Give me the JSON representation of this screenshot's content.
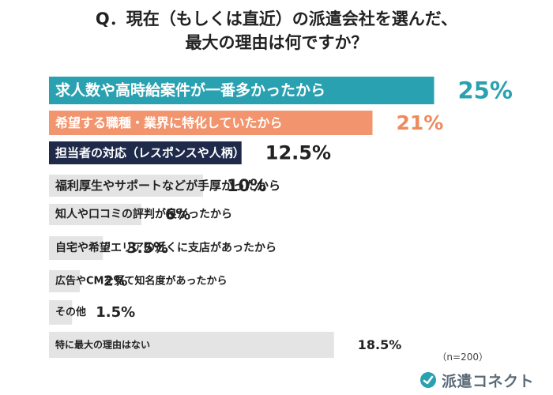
{
  "title_line1": "Q．現在（もしくは直近）の派遣会社を選んだ、",
  "title_line2": "最大の理由は何ですか？",
  "footnote": "（n=200）",
  "logo_text": "派遣コネクト",
  "chart_data": {
    "type": "bar",
    "orientation": "horizontal",
    "categories": [
      "求人数や高時給案件が一番多かったから",
      "希望する職種・業界に特化していたから",
      "担当者の対応（レスポンスや人柄）が良かったから",
      "福利厚生やサポートなどが手厚かったから",
      "知人や口コミの評判が良かったから",
      "自宅や希望エリアの近くに支店があったから",
      "広告やCMを見て知名度があったから",
      "その他",
      "特に最大の理由はない"
    ],
    "values": [
      25,
      21,
      12.5,
      10,
      6,
      3.5,
      2,
      1.5,
      18.5
    ],
    "value_labels": [
      "25%",
      "21%",
      "12.5%",
      "10%",
      "6%",
      "3.5%",
      "2%",
      "1.5%",
      "18.5%"
    ],
    "bar_colors": [
      "#2aa1b1",
      "#f2956e",
      "#1f2a4a",
      "#e4e4e4",
      "#e4e4e4",
      "#e4e4e4",
      "#e4e4e4",
      "#e4e4e4",
      "#e4e4e4"
    ],
    "value_colors": [
      "#2aa1b1",
      "#ee8a5e",
      "#222222",
      "#222222",
      "#222222",
      "#222222",
      "#222222",
      "#222222",
      "#222222"
    ],
    "label_colors": [
      "#ffffff",
      "#ffffff",
      "#ffffff",
      "#222222",
      "#222222",
      "#222222",
      "#222222",
      "#222222",
      "#222222"
    ]
  }
}
